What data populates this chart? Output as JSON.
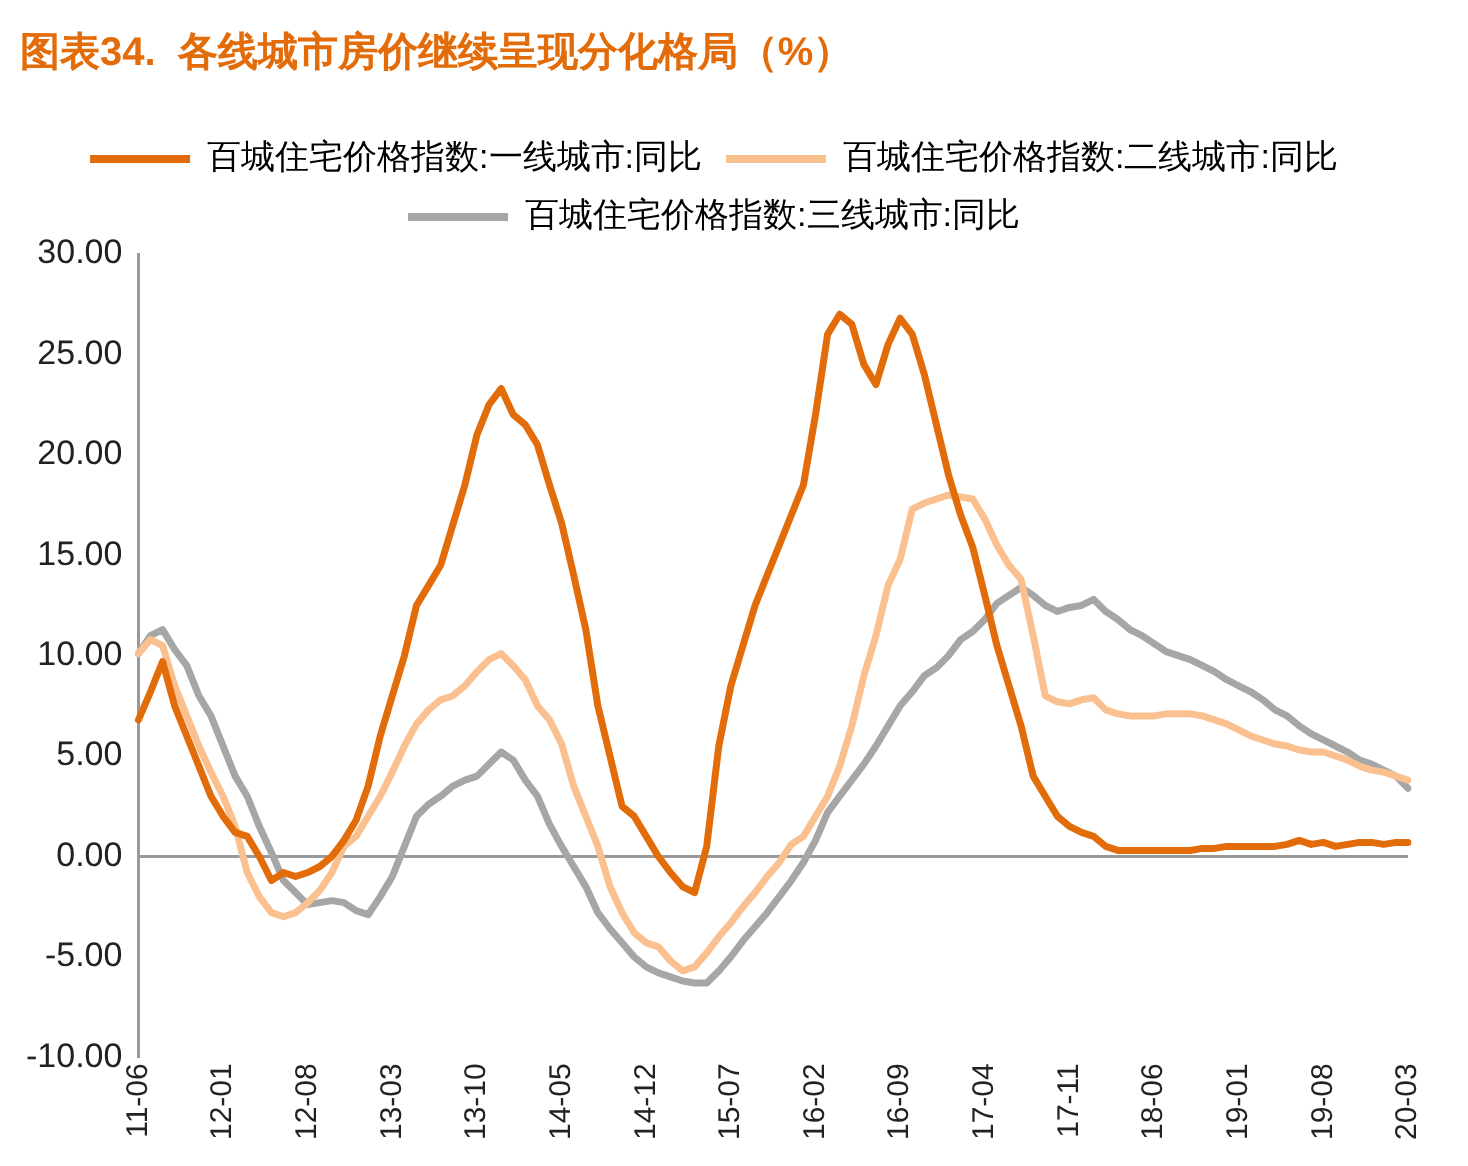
{
  "chart_data": {
    "type": "line",
    "title": "图表34.  各线城市房价继续呈现分化格局（%）",
    "categories": [
      "11-06",
      null,
      null,
      null,
      null,
      null,
      null,
      "12-01",
      null,
      null,
      null,
      null,
      null,
      null,
      "12-08",
      null,
      null,
      null,
      null,
      null,
      null,
      "13-03",
      null,
      null,
      null,
      null,
      null,
      null,
      "13-10",
      null,
      null,
      null,
      null,
      null,
      null,
      "14-05",
      null,
      null,
      null,
      null,
      null,
      null,
      "14-12",
      null,
      null,
      null,
      null,
      null,
      null,
      "15-07",
      null,
      null,
      null,
      null,
      null,
      null,
      "16-02",
      null,
      null,
      null,
      null,
      null,
      null,
      "16-09",
      null,
      null,
      null,
      null,
      null,
      null,
      "17-04",
      null,
      null,
      null,
      null,
      null,
      null,
      "17-11",
      null,
      null,
      null,
      null,
      null,
      null,
      "18-06",
      null,
      null,
      null,
      null,
      null,
      null,
      "19-01",
      null,
      null,
      null,
      null,
      null,
      null,
      "19-08",
      null,
      null,
      null,
      null,
      null,
      null,
      "20-03"
    ],
    "series": [
      {
        "name": "百城住宅价格指数:一线城市:同比",
        "color": "#e36c0a",
        "values": [
          6.8,
          8.2,
          9.7,
          7.5,
          6,
          4.5,
          3,
          2,
          1.2,
          1,
          0,
          -1.2,
          -0.8,
          -1,
          -0.8,
          -0.5,
          0,
          0.8,
          1.8,
          3.5,
          6,
          8,
          10,
          12.5,
          13.5,
          14.5,
          16.5,
          18.5,
          21,
          22.5,
          23.3,
          22,
          21.5,
          20.5,
          18.5,
          16.6,
          14,
          11.3,
          7.5,
          5,
          2.5,
          2,
          1,
          0,
          -0.8,
          -1.5,
          -1.8,
          0.5,
          5.5,
          8.5,
          10.5,
          12.5,
          14,
          15.5,
          17,
          18.5,
          22,
          26,
          27,
          26.5,
          24.5,
          23.5,
          25.5,
          26.8,
          26,
          24,
          21.5,
          19,
          17,
          15.4,
          13,
          10.5,
          8.5,
          6.5,
          4,
          3,
          2,
          1.5,
          1.2,
          1,
          0.5,
          0.3,
          0.3,
          0.3,
          0.3,
          0.3,
          0.3,
          0.3,
          0.4,
          0.4,
          0.5,
          0.5,
          0.5,
          0.5,
          0.5,
          0.6,
          0.8,
          0.6,
          0.7,
          0.5,
          0.6,
          0.7,
          0.7,
          0.6,
          0.7,
          0.7
        ]
      },
      {
        "name": "百城住宅价格指数:二线城市:同比",
        "color": "#fac090",
        "values": [
          10.1,
          10.8,
          10.5,
          8.5,
          7,
          5.5,
          4.2,
          3,
          1.5,
          -0.8,
          -2,
          -2.8,
          -3,
          -2.8,
          -2.3,
          -1.7,
          -0.8,
          0.5,
          1,
          2,
          3,
          4.2,
          5.5,
          6.6,
          7.3,
          7.8,
          8,
          8.5,
          9.2,
          9.8,
          10.1,
          9.5,
          8.8,
          7.5,
          6.8,
          5.6,
          3.5,
          2,
          0.5,
          -1.5,
          -2.8,
          -3.8,
          -4.3,
          -4.5,
          -5.2,
          -5.7,
          -5.5,
          -4.8,
          -4,
          -3.3,
          -2.5,
          -1.8,
          -1,
          -0.3,
          0.6,
          1,
          2,
          3,
          4.5,
          6.5,
          9,
          11,
          13.5,
          14.8,
          17.3,
          17.6,
          17.8,
          18,
          17.9,
          17.8,
          16.8,
          15.5,
          14.5,
          13.8,
          11,
          8,
          7.7,
          7.6,
          7.8,
          7.9,
          7.3,
          7.1,
          7,
          7,
          7,
          7.1,
          7.1,
          7.1,
          7,
          6.8,
          6.6,
          6.3,
          6,
          5.8,
          5.6,
          5.5,
          5.3,
          5.2,
          5.2,
          5,
          4.8,
          4.5,
          4.3,
          4.2,
          4,
          3.8
        ]
      },
      {
        "name": "百城住宅价格指数:三线城市:同比",
        "color": "#a6a6a6",
        "values": [
          10.1,
          11,
          11.3,
          10.3,
          9.5,
          8,
          7,
          5.5,
          4,
          3,
          1.5,
          0.2,
          -1.2,
          -1.8,
          -2.4,
          -2.3,
          -2.2,
          -2.3,
          -2.7,
          -2.9,
          -2,
          -1,
          0.5,
          2,
          2.6,
          3,
          3.5,
          3.8,
          4,
          4.6,
          5.2,
          4.8,
          3.8,
          3,
          1.6,
          0.5,
          -0.5,
          -1.5,
          -2.8,
          -3.6,
          -4.3,
          -5,
          -5.5,
          -5.8,
          -6,
          -6.2,
          -6.3,
          -6.3,
          -5.7,
          -5,
          -4.2,
          -3.5,
          -2.8,
          -2,
          -1.2,
          -0.3,
          0.8,
          2.2,
          3,
          3.8,
          4.6,
          5.5,
          6.5,
          7.5,
          8.2,
          9,
          9.4,
          10,
          10.8,
          11.2,
          11.8,
          12.6,
          13,
          13.4,
          13,
          12.5,
          12.2,
          12.4,
          12.5,
          12.8,
          12.2,
          11.8,
          11.3,
          11,
          10.6,
          10.2,
          10,
          9.8,
          9.5,
          9.2,
          8.8,
          8.5,
          8.2,
          7.8,
          7.3,
          7,
          6.5,
          6.1,
          5.8,
          5.5,
          5.2,
          4.8,
          4.6,
          4.3,
          4,
          3.4
        ]
      }
    ],
    "ylim": [
      -10,
      30
    ],
    "yticks": [
      {
        "value": -10,
        "label": "-10.00"
      },
      {
        "value": -5,
        "label": "-5.00"
      },
      {
        "value": 0,
        "label": "0.00"
      },
      {
        "value": 5,
        "label": "5.00"
      },
      {
        "value": 10,
        "label": "10.00"
      },
      {
        "value": 15,
        "label": "15.00"
      },
      {
        "value": 20,
        "label": "20.00"
      },
      {
        "value": 25,
        "label": "25.00"
      },
      {
        "value": 30,
        "label": "30.00"
      }
    ],
    "ref_lines": [
      {
        "axis": "y",
        "value": 0,
        "color": "#999999"
      }
    ],
    "grid": false,
    "legend": "top",
    "marker": "none",
    "line_style": "solid"
  }
}
